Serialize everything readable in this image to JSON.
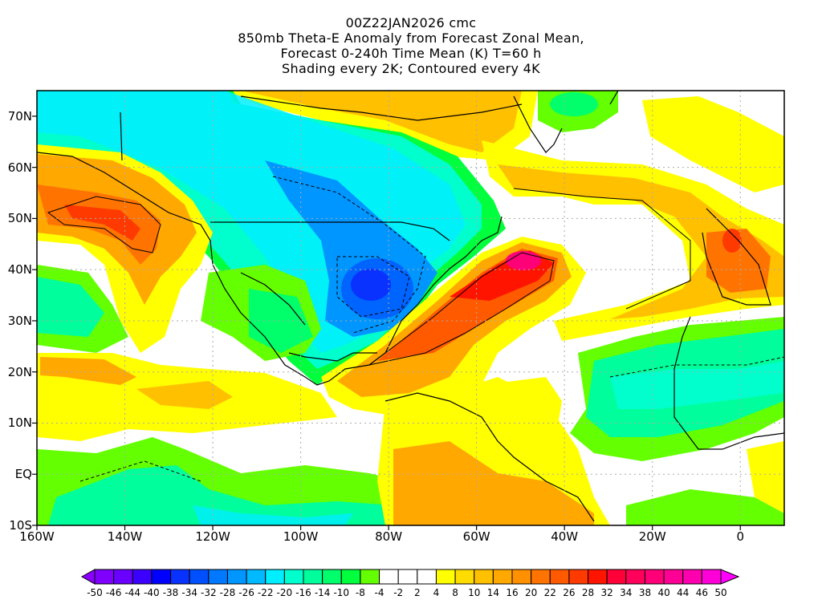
{
  "title": {
    "line1": "00Z22JAN2026 cmc",
    "line2": "850mb Theta-E Anomaly from Forecast Zonal Mean,",
    "line3": "Forecast 0-240h Time Mean (K) T=60 h",
    "line4": "Shading every 2K; Contoured every 4K"
  },
  "axes": {
    "lat_labels": [
      "70N",
      "60N",
      "50N",
      "40N",
      "30N",
      "20N",
      "10N",
      "EQ",
      "10S"
    ],
    "lon_labels": [
      "160W",
      "140W",
      "120W",
      "100W",
      "80W",
      "60W",
      "40W",
      "20W",
      "0"
    ]
  },
  "map": {
    "variable": "850mb Theta-E anomaly (K)",
    "lat_range": [
      -10,
      75
    ],
    "lon_range": [
      -160,
      10
    ]
  },
  "colorbar": {
    "labels": [
      "-50",
      "-46",
      "-44",
      "-40",
      "-38",
      "-34",
      "-32",
      "-28",
      "-26",
      "-22",
      "-20",
      "-16",
      "-14",
      "-10",
      "-8",
      "-4",
      "-2",
      "2",
      "4",
      "8",
      "10",
      "14",
      "16",
      "20",
      "22",
      "26",
      "28",
      "32",
      "34",
      "38",
      "40",
      "44",
      "46",
      "50"
    ],
    "colors": [
      "#7f00ff",
      "#6a00ff",
      "#3c00ff",
      "#0000ff",
      "#0a32ff",
      "#0050ff",
      "#0078ff",
      "#0096ff",
      "#00b9ff",
      "#00eeff",
      "#00ffcc",
      "#00ff9c",
      "#00ff6a",
      "#00ff3c",
      "#64ff00",
      "#ffffff",
      "#ffffff",
      "#ffffff",
      "#ffff00",
      "#ffdc00",
      "#ffc000",
      "#ffa800",
      "#ff9000",
      "#ff7400",
      "#ff5a00",
      "#ff3a00",
      "#ff1400",
      "#ff0038",
      "#ff005a",
      "#ff0078",
      "#ff0096",
      "#ff00b0",
      "#ff00d8"
    ],
    "under_color": "#8c00ff",
    "over_color": "#ff00ff"
  }
}
